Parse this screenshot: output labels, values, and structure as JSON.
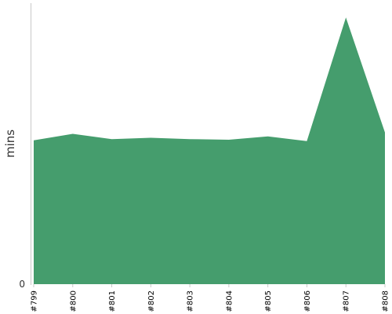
{
  "chart_data": {
    "type": "area",
    "title": "",
    "xlabel": "",
    "ylabel": "mins",
    "categories": [
      "#799",
      "#800",
      "#801",
      "#802",
      "#803",
      "#804",
      "#805",
      "#806",
      "#807",
      "#808"
    ],
    "series": [
      {
        "values": [
          11.0,
          11.5,
          11.1,
          11.2,
          11.1,
          11.05,
          11.3,
          10.95,
          20.4,
          11.6
        ]
      }
    ],
    "ylim": [
      0,
      21.5
    ],
    "y_ticks": [
      "0"
    ],
    "grid": false,
    "colors": {
      "area": "#459d6d",
      "axis": "#c8c8c8"
    }
  }
}
